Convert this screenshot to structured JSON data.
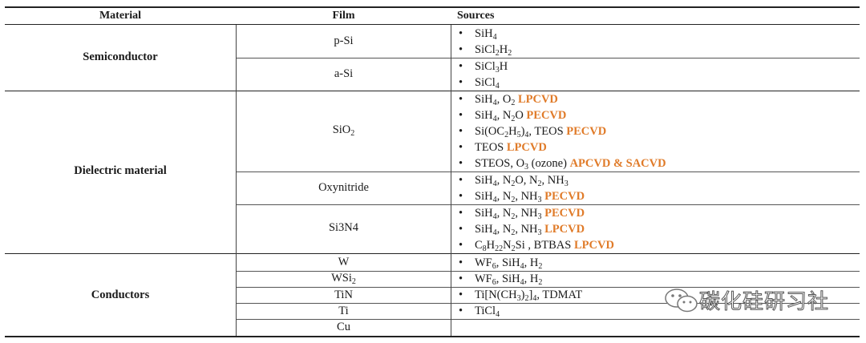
{
  "headers": {
    "material": "Material",
    "film": "Film",
    "sources": "Sources"
  },
  "materials": {
    "semiconductor": "Semiconductor",
    "dielectric": "Dielectric material",
    "conductors": "Conductors"
  },
  "films": {
    "psi": "p-Si",
    "asi": "a-Si",
    "sio2_base": "SiO",
    "sio2_sub": "2",
    "oxynitride": "Oxynitride",
    "si3n4": "Si3N4",
    "w": "W",
    "wsi2_base": "WSi",
    "wsi2_sub": "2",
    "tin": "TiN",
    "ti": "Ti",
    "cu": "Cu"
  },
  "bullet": "•",
  "process_colors": {
    "highlight": "#e07b29"
  },
  "watermark": {
    "text": "碳化硅研习社",
    "icon": "wechat-icon"
  }
}
